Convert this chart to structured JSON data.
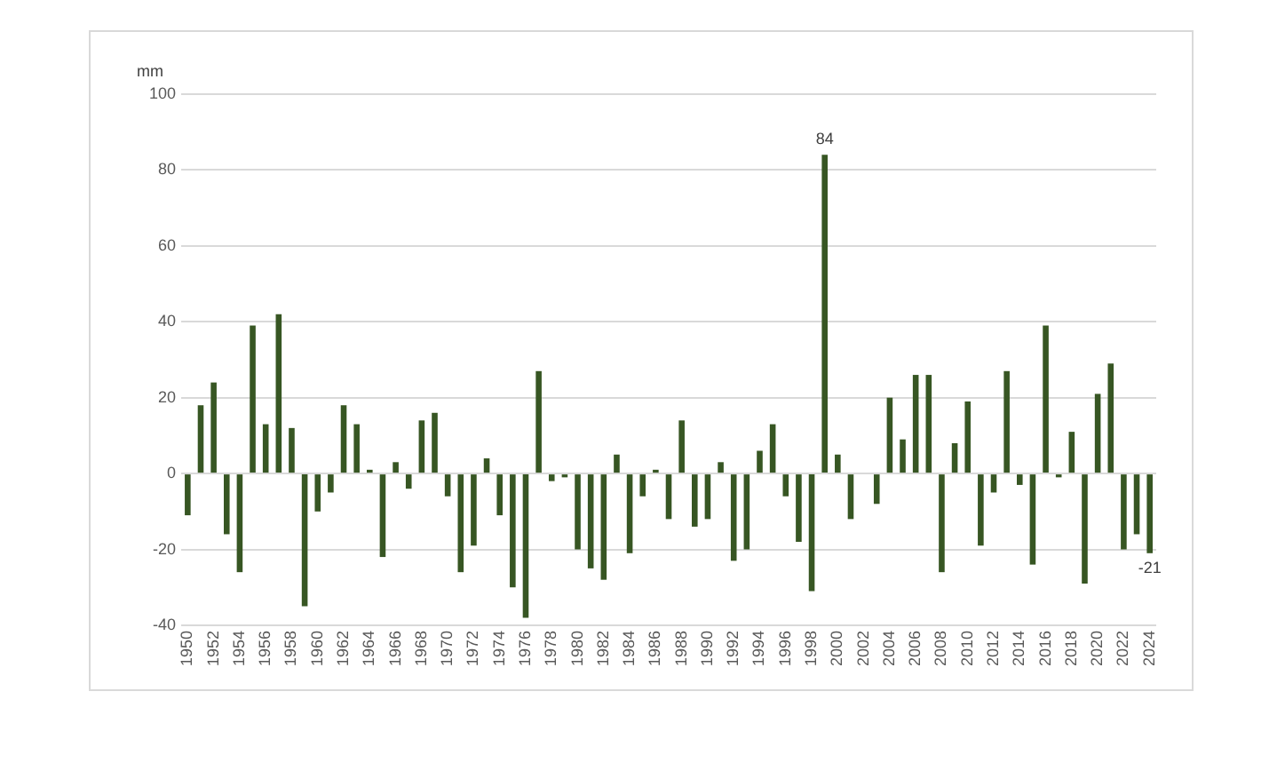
{
  "chart_data": {
    "type": "bar",
    "ylabel": "mm",
    "categories": [
      "1950",
      null,
      "1952",
      null,
      "1954",
      null,
      "1956",
      null,
      "1958",
      null,
      "1960",
      null,
      "1962",
      null,
      "1964",
      null,
      "1966",
      null,
      "1968",
      null,
      "1970",
      null,
      "1972",
      null,
      "1974",
      null,
      "1976",
      null,
      "1978",
      null,
      "1980",
      null,
      "1982",
      null,
      "1984",
      null,
      "1986",
      null,
      "1988",
      null,
      "1990",
      null,
      "1992",
      null,
      "1994",
      null,
      "1996",
      null,
      "1998",
      null,
      "2000",
      null,
      "2002",
      null,
      "2004",
      null,
      "2006",
      null,
      "2008",
      null,
      "2010",
      null,
      "2012",
      null,
      "2014",
      null,
      "2016",
      null,
      "2018",
      null,
      "2020",
      null,
      "2022",
      null,
      "2024"
    ],
    "values": [
      -11,
      18,
      24,
      -16,
      -26,
      39,
      13,
      42,
      12,
      -35,
      -10,
      -5,
      18,
      13,
      1,
      -22,
      3,
      -4,
      14,
      16,
      -6,
      -26,
      -19,
      4,
      -11,
      -30,
      -38,
      27,
      -2,
      -1,
      -20,
      -25,
      -28,
      5,
      -21,
      -6,
      1,
      -12,
      14,
      -14,
      -12,
      3,
      -23,
      -20,
      6,
      13,
      -6,
      -18,
      -31,
      84,
      5,
      -12,
      0,
      -8,
      20,
      9,
      26,
      26,
      -26,
      8,
      19,
      -19,
      -5,
      27,
      -3,
      -24,
      39,
      -1,
      11,
      -29,
      21,
      29,
      -20,
      -16,
      -21
    ],
    "value_labels": [
      null,
      null,
      null,
      null,
      null,
      null,
      null,
      null,
      null,
      null,
      null,
      null,
      null,
      null,
      null,
      null,
      null,
      null,
      null,
      null,
      null,
      null,
      null,
      null,
      null,
      null,
      null,
      null,
      null,
      null,
      null,
      null,
      null,
      null,
      null,
      null,
      null,
      null,
      null,
      null,
      null,
      null,
      null,
      null,
      null,
      null,
      null,
      null,
      null,
      "84",
      null,
      null,
      null,
      null,
      null,
      null,
      null,
      null,
      null,
      null,
      null,
      null,
      null,
      null,
      null,
      null,
      null,
      null,
      null,
      null,
      null,
      null,
      null,
      null,
      "-21"
    ],
    "color": "#375623",
    "ylim": [
      -40,
      100
    ],
    "yticks": [
      -40,
      -20,
      0,
      20,
      40,
      60,
      80,
      100
    ],
    "grid": "y"
  }
}
